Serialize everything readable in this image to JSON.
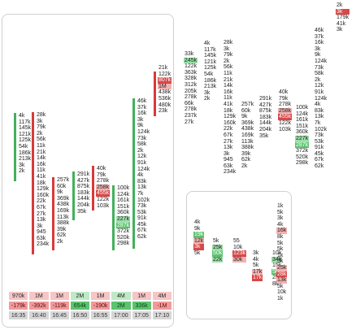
{
  "panel_left": {
    "columns": [
      {
        "bar": "g",
        "cells": [
          "4k",
          "117k",
          "145k",
          "121k",
          "125k",
          "54k",
          "186k",
          "213k",
          "3k",
          "2k"
        ]
      },
      {
        "bar": "r",
        "cells": [
          "28k",
          "3k",
          "79k",
          "2k",
          "56k",
          "11k",
          "21k",
          "14k",
          "16k",
          "11k",
          "41k",
          "18k",
          "129k",
          "160k",
          "22k",
          "67k",
          "27k",
          "13k",
          "3k",
          "945",
          "63k",
          "234k"
        ]
      },
      {
        "bar": "r",
        "cells": [
          "257k",
          "60k",
          "9k",
          "369k",
          "438k",
          "169k",
          "113k",
          "388k",
          "39k",
          "62k",
          "2k"
        ]
      },
      {
        "bar": "g",
        "cells": [
          "291k",
          "427k",
          "875k",
          "183k",
          "144k",
          "204k",
          "35k"
        ]
      },
      {
        "bar": "r",
        "cells": [
          "40k",
          "79k",
          "278k",
          "258k",
          "455k",
          "122k",
          "103k"
        ]
      },
      {
        "bar": "g",
        "cells": [
          "100k",
          "124k",
          "161k",
          "151k",
          "360k",
          "227k",
          "287k",
          "372k",
          "520k",
          "298k"
        ]
      },
      {
        "bar": "g",
        "cells": [
          "46k",
          "37k",
          "16k",
          "3k",
          "9k",
          "124k",
          "73k",
          "58k",
          "2k",
          "12k",
          "91k",
          "124k",
          "4k",
          "83k",
          "13k",
          "7k",
          "102k",
          "73k",
          "53k",
          "91k",
          "45k",
          "67k",
          "62k"
        ]
      },
      {
        "bar": "r",
        "cells": [
          "21k",
          "122k",
          "807k",
          "1M",
          "438k",
          "536k",
          "480k",
          "23k"
        ]
      }
    ],
    "summary": {
      "volume": [
        "970k",
        "1M",
        "1M",
        "2M",
        "1M",
        "4M",
        "1M",
        "4M"
      ],
      "delta": [
        "-179k",
        "-392k",
        "-119k",
        "654k",
        "-190k",
        "2M",
        "336k",
        "-1M"
      ],
      "time": [
        "16:35",
        "16:40",
        "16:45",
        "16:50",
        "16:55",
        "17:00",
        "17:05",
        "17:10"
      ]
    }
  },
  "panel_right_top": {
    "columns": [
      {
        "cells": [
          "33k",
          "245k",
          "122k",
          "363k",
          "328k",
          "312k",
          "205k",
          "278k",
          "66k",
          "278k",
          "237k",
          "27k"
        ]
      },
      {
        "cells": [
          "4k",
          "117k",
          "145k",
          "121k",
          "125k",
          "54k",
          "186k",
          "213k",
          "3k",
          "2k"
        ]
      },
      {
        "cells": [
          "28k",
          "3k",
          "79k",
          "2k",
          "56k",
          "11k",
          "21k",
          "14k",
          "16k",
          "11k",
          "41k",
          "18k",
          "129k",
          "160k",
          "22k",
          "67k",
          "27k",
          "13k",
          "3k",
          "945",
          "63k",
          "234k"
        ]
      },
      {
        "cells": [
          "257k",
          "60k",
          "9k",
          "369k",
          "438k",
          "169k",
          "113k",
          "388k",
          "39k",
          "62k",
          "2k"
        ]
      },
      {
        "cells": [
          "291k",
          "427k",
          "875k",
          "183k",
          "144k",
          "204k",
          "35k"
        ]
      },
      {
        "cells": [
          "40k",
          "79k",
          "278k",
          "258k",
          "455k",
          "122k",
          "103k"
        ]
      },
      {
        "cells": [
          "100k",
          "124k",
          "161k",
          "151k",
          "360k",
          "227k",
          "287k",
          "372k",
          "520k",
          "298k"
        ]
      },
      {
        "cells": [
          "46k",
          "37k",
          "16k",
          "3k",
          "9k",
          "124k",
          "73k",
          "58k",
          "2k",
          "12k",
          "91k",
          "124k",
          "4k",
          "83k",
          "13k",
          "7k",
          "102k",
          "73k",
          "53k",
          "91k",
          "45k",
          "67k",
          "62k"
        ]
      },
      {
        "cells": [
          "2k",
          "3k",
          "179k",
          "41k",
          "3k"
        ]
      }
    ]
  },
  "panel_right_bottom": {
    "columns": [
      {
        "cells": [
          "4k",
          "9k",
          "19k",
          "12k",
          "3k",
          "5k"
        ]
      },
      {
        "cells": [
          "5k",
          "25k",
          "50k",
          "22k"
        ]
      },
      {
        "cells": [
          "55",
          "10k",
          "123k",
          "30k"
        ]
      },
      {
        "cells": [
          "3k",
          "4k",
          "5k",
          "17k",
          "17k"
        ]
      },
      {
        "cells": [
          "10k",
          "34k",
          "15k",
          "5k",
          "25k",
          "8k"
        ]
      },
      {
        "cells": [
          "1k",
          "5k",
          "3k",
          "4k",
          "16k",
          "8k",
          "5k",
          "5k",
          "1k",
          "5k",
          "25k",
          "28k",
          "13k",
          "5k",
          "10k",
          "1k"
        ]
      }
    ]
  }
}
